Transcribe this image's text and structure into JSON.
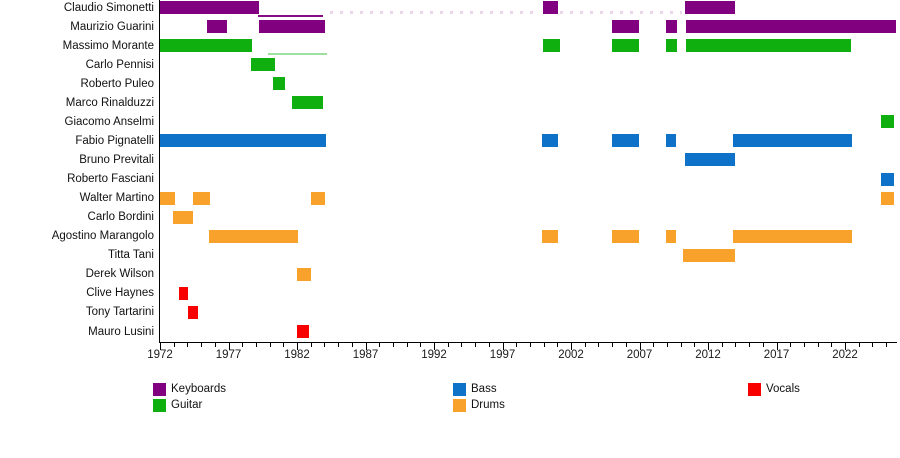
{
  "chart_data": {
    "type": "timeline",
    "description": "Band members membership timeline (Gantt-style); bars colored by instrument",
    "x_axis": {
      "start": 1972,
      "end": 2025.8,
      "major_ticks": [
        1972,
        1977,
        1982,
        1987,
        1992,
        1997,
        2002,
        2007,
        2012,
        2017,
        2022
      ],
      "minor_tick_first": 1972,
      "minor_tick_last": 2025
    },
    "legend": [
      {
        "label": "Keyboards",
        "color": "#800080",
        "col": 0,
        "row": 0
      },
      {
        "label": "Guitar",
        "color": "#0FAF0F",
        "col": 0,
        "row": 1
      },
      {
        "label": "Bass",
        "color": "#0E72C8",
        "col": 1,
        "row": 0
      },
      {
        "label": "Drums",
        "color": "#F8A22B",
        "col": 1,
        "row": 1
      },
      {
        "label": "Vocals",
        "color": "#F80000",
        "col": 2,
        "row": 0
      }
    ],
    "members": [
      {
        "name": "Claudio Simonetti",
        "instrument": "Keyboards",
        "periods": [
          [
            1972,
            1979.2
          ],
          [
            1999.95,
            2001.05
          ],
          [
            2010.35,
            2014.0
          ]
        ],
        "thin_lines": [
          [
            1979.15,
            1983.9
          ]
        ],
        "dashed_lines": [
          [
            1984.4,
            1999.7
          ],
          [
            2001.2,
            2010.1
          ]
        ]
      },
      {
        "name": "Maurizio Guarini",
        "instrument": "Keyboards",
        "periods": [
          [
            1975.4,
            1976.9
          ],
          [
            1979.2,
            1984.05
          ],
          [
            2005.0,
            2007.0
          ],
          [
            2008.95,
            2009.75
          ],
          [
            2010.4,
            2025.7
          ]
        ]
      },
      {
        "name": "Massimo Morante",
        "instrument": "Guitar",
        "periods": [
          [
            1972,
            1978.75
          ],
          [
            1999.95,
            2001.2
          ],
          [
            2005.0,
            2007.0
          ],
          [
            2008.95,
            2009.75
          ],
          [
            2010.4,
            2022.45
          ]
        ],
        "thin_lines": [
          [
            1979.9,
            1984.2
          ]
        ]
      },
      {
        "name": "Carlo Pennisi",
        "instrument": "Guitar",
        "periods": [
          [
            1978.65,
            1980.4
          ]
        ]
      },
      {
        "name": "Roberto Puleo",
        "instrument": "Guitar",
        "periods": [
          [
            1980.25,
            1981.1
          ]
        ]
      },
      {
        "name": "Marco Rinalduzzi",
        "instrument": "Guitar",
        "periods": [
          [
            1981.65,
            1983.9
          ]
        ]
      },
      {
        "name": "Giacomo Anselmi",
        "instrument": "Guitar",
        "periods": [
          [
            2024.6,
            2025.6
          ]
        ]
      },
      {
        "name": "Fabio Pignatelli",
        "instrument": "Bass",
        "periods": [
          [
            1972,
            1984.1
          ],
          [
            1999.9,
            2001.05
          ],
          [
            2005.0,
            2007.0
          ],
          [
            2008.9,
            2009.65
          ],
          [
            2013.8,
            2022.5
          ]
        ]
      },
      {
        "name": "Bruno Previtali",
        "instrument": "Bass",
        "periods": [
          [
            2010.3,
            2014.0
          ]
        ]
      },
      {
        "name": "Roberto Fasciani",
        "instrument": "Bass",
        "periods": [
          [
            2024.6,
            2025.6
          ]
        ]
      },
      {
        "name": "Walter Martino",
        "instrument": "Drums",
        "periods": [
          [
            1972,
            1973.1
          ],
          [
            1974.4,
            1975.65
          ],
          [
            1983.0,
            1984.05
          ],
          [
            2024.6,
            2025.6
          ]
        ]
      },
      {
        "name": "Carlo Bordini",
        "instrument": "Drums",
        "periods": [
          [
            1972.95,
            1974.4
          ]
        ]
      },
      {
        "name": "Agostino Marangolo",
        "instrument": "Drums",
        "periods": [
          [
            1975.6,
            1982.1
          ],
          [
            1999.9,
            2001.05
          ],
          [
            2005.0,
            2007.0
          ],
          [
            2008.9,
            2009.65
          ],
          [
            2013.8,
            2022.5
          ]
        ]
      },
      {
        "name": "Titta Tani",
        "instrument": "Drums",
        "periods": [
          [
            2010.15,
            2014.0
          ]
        ]
      },
      {
        "name": "Derek Wilson",
        "instrument": "Drums",
        "periods": [
          [
            1982.0,
            1983.0
          ]
        ]
      },
      {
        "name": "Clive Haynes",
        "instrument": "Vocals",
        "periods": [
          [
            1973.4,
            1974.05
          ]
        ]
      },
      {
        "name": "Tony Tartarini",
        "instrument": "Vocals",
        "periods": [
          [
            1974.05,
            1974.75
          ]
        ]
      },
      {
        "name": "Mauro Lusini",
        "instrument": "Vocals",
        "periods": [
          [
            1982.0,
            1982.9
          ]
        ]
      }
    ]
  }
}
